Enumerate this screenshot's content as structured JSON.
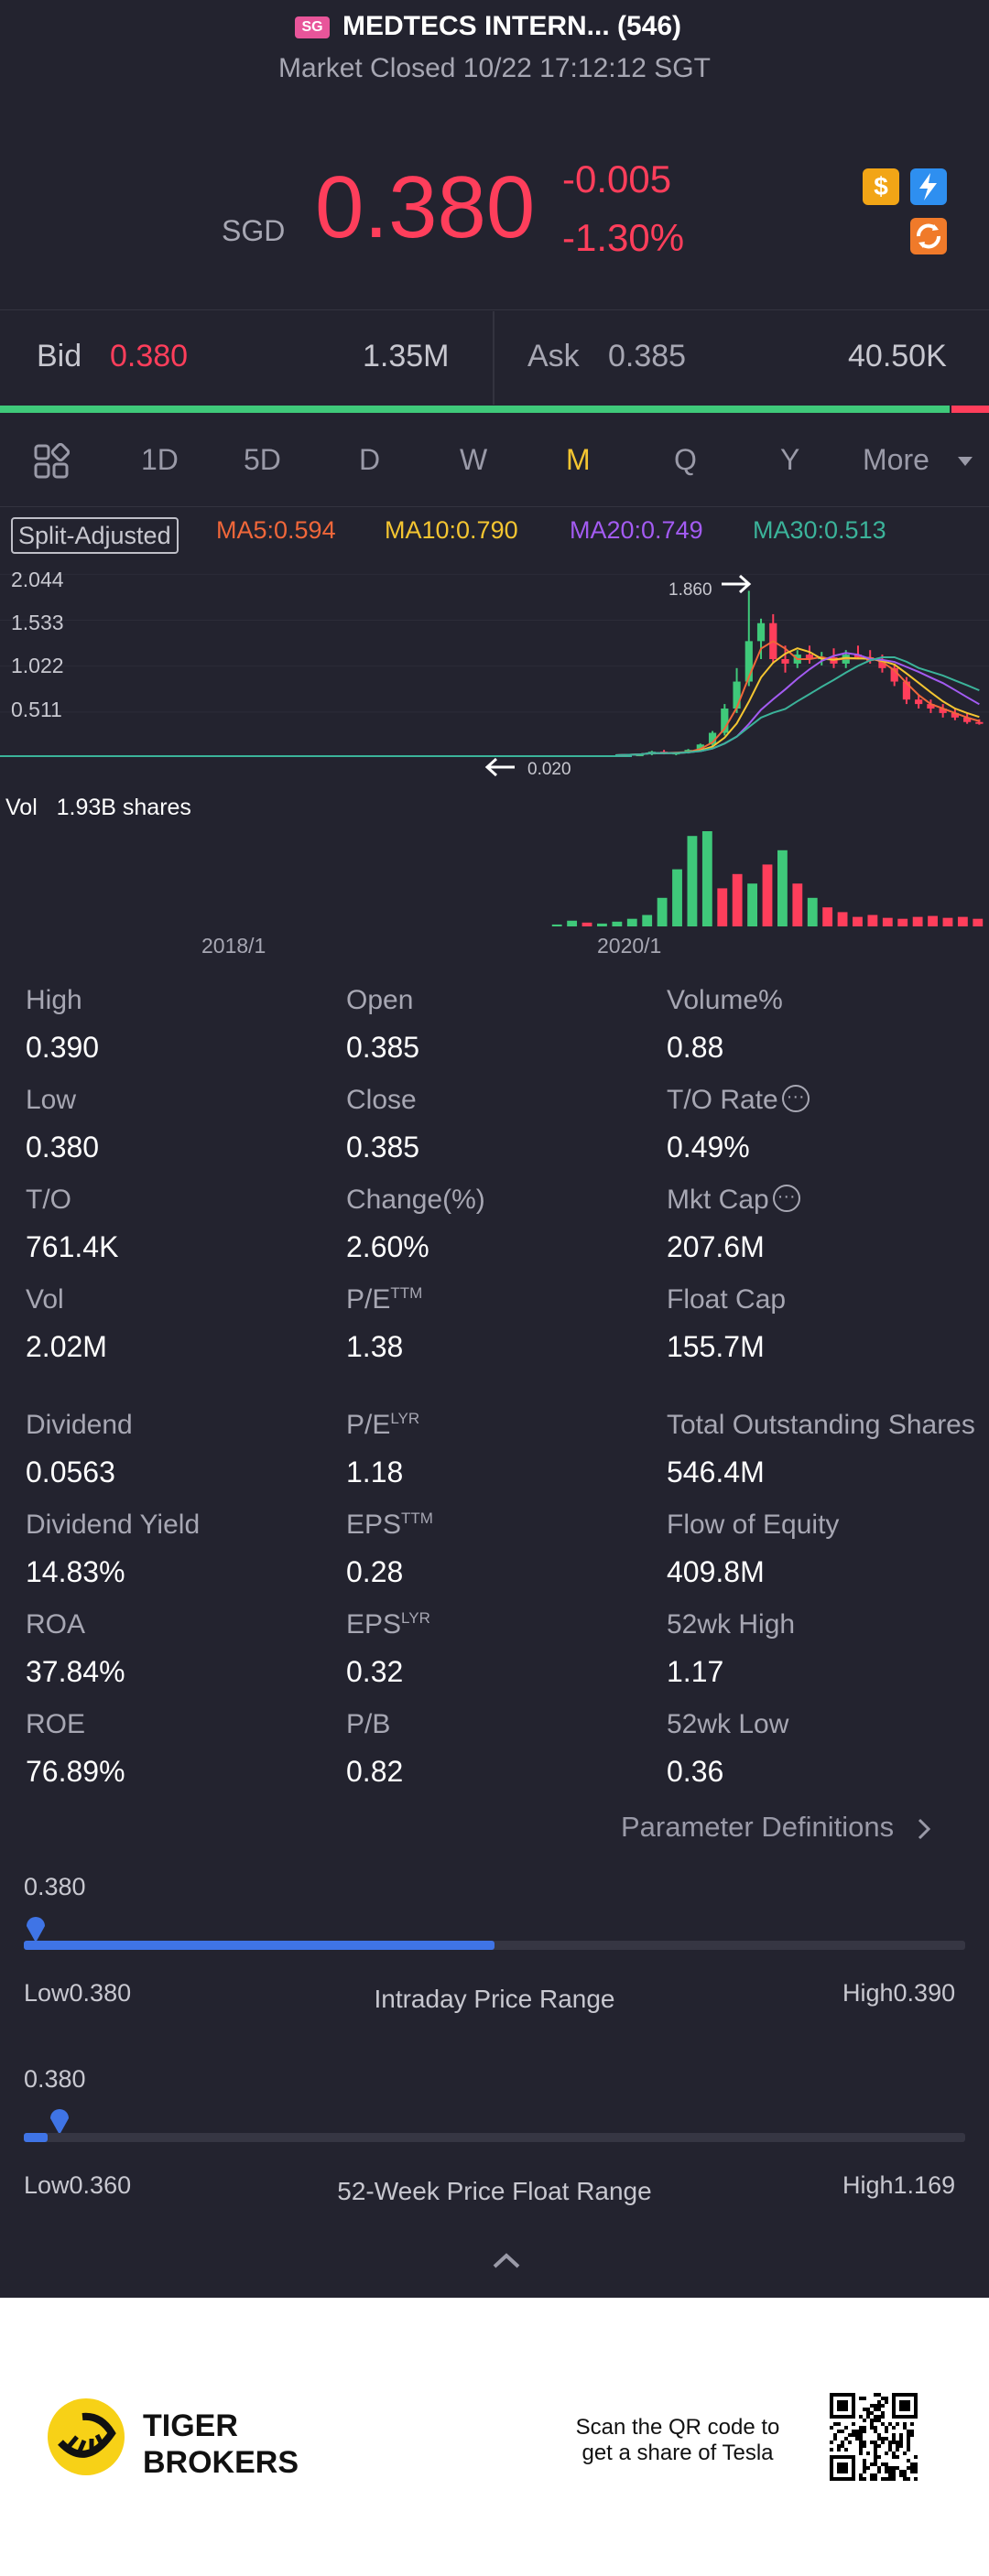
{
  "header": {
    "badge": "SG",
    "title": "MEDTECS INTERN... (546)",
    "status": "Market Closed 10/22 17:12:12 SGT"
  },
  "price": {
    "currency": "SGD",
    "last": "0.380",
    "change": "-0.005",
    "change_pct": "-1.30%",
    "icons": [
      "dollar-icon",
      "flash-icon",
      "sync-icon"
    ]
  },
  "quote": {
    "bid_label": "Bid",
    "bid_price": "0.380",
    "bid_size": "1.35M",
    "ask_label": "Ask",
    "ask_price": "0.385",
    "ask_size": "40.50K",
    "bid_share": 0.96
  },
  "tabs": {
    "items": [
      "1D",
      "5D",
      "D",
      "W",
      "M",
      "Q",
      "Y",
      "More"
    ],
    "active": "M"
  },
  "chart": {
    "split_label": "Split-Adjusted",
    "ma": [
      {
        "label": "MA5:0.594",
        "color": "#f0673a"
      },
      {
        "label": "MA10:0.790",
        "color": "#f4c531"
      },
      {
        "label": "MA20:0.749",
        "color": "#a35bf2"
      },
      {
        "label": "MA30:0.513",
        "color": "#3bb39a"
      }
    ],
    "y_ticks": [
      "2.044",
      "1.533",
      "1.022",
      "0.511"
    ],
    "high_marker": "1.860",
    "low_marker": "0.020",
    "volume_label": "Vol",
    "volume_value": "1.93B shares",
    "x_ticks": [
      "2018/1",
      "2020/1"
    ]
  },
  "chart_data": {
    "type": "candlestick",
    "period": "M",
    "y_ticks": [
      2.044,
      1.533,
      1.022,
      0.511
    ],
    "ylim": [
      0,
      2.2
    ],
    "high_marker": 1.86,
    "low_marker": 0.02,
    "x_ticks": [
      "2018/1",
      "2020/1"
    ],
    "colors": {
      "up": "#3fc97a",
      "down": "#ff3e5b"
    },
    "candles": [
      {
        "o": 0.03,
        "h": 0.05,
        "l": 0.02,
        "c": 0.04
      },
      {
        "o": 0.04,
        "h": 0.08,
        "l": 0.03,
        "c": 0.07
      },
      {
        "o": 0.07,
        "h": 0.09,
        "l": 0.04,
        "c": 0.05
      },
      {
        "o": 0.05,
        "h": 0.06,
        "l": 0.03,
        "c": 0.06
      },
      {
        "o": 0.06,
        "h": 0.1,
        "l": 0.05,
        "c": 0.09
      },
      {
        "o": 0.09,
        "h": 0.16,
        "l": 0.08,
        "c": 0.15
      },
      {
        "o": 0.15,
        "h": 0.3,
        "l": 0.13,
        "c": 0.28
      },
      {
        "o": 0.28,
        "h": 0.6,
        "l": 0.25,
        "c": 0.55
      },
      {
        "o": 0.55,
        "h": 1.0,
        "l": 0.5,
        "c": 0.85
      },
      {
        "o": 0.85,
        "h": 1.86,
        "l": 0.8,
        "c": 1.3
      },
      {
        "o": 1.3,
        "h": 1.55,
        "l": 1.1,
        "c": 1.5
      },
      {
        "o": 1.5,
        "h": 1.6,
        "l": 1.05,
        "c": 1.1
      },
      {
        "o": 1.1,
        "h": 1.25,
        "l": 0.95,
        "c": 1.05
      },
      {
        "o": 1.05,
        "h": 1.2,
        "l": 1.0,
        "c": 1.15
      },
      {
        "o": 1.15,
        "h": 1.25,
        "l": 1.05,
        "c": 1.1
      },
      {
        "o": 1.1,
        "h": 1.18,
        "l": 1.03,
        "c": 1.12
      },
      {
        "o": 1.12,
        "h": 1.22,
        "l": 1.0,
        "c": 1.05
      },
      {
        "o": 1.05,
        "h": 1.2,
        "l": 1.0,
        "c": 1.15
      },
      {
        "o": 1.15,
        "h": 1.25,
        "l": 1.1,
        "c": 1.12
      },
      {
        "o": 1.12,
        "h": 1.2,
        "l": 1.05,
        "c": 1.08
      },
      {
        "o": 1.08,
        "h": 1.15,
        "l": 0.95,
        "c": 1.0
      },
      {
        "o": 1.0,
        "h": 1.05,
        "l": 0.8,
        "c": 0.85
      },
      {
        "o": 0.85,
        "h": 0.9,
        "l": 0.6,
        "c": 0.65
      },
      {
        "o": 0.65,
        "h": 0.7,
        "l": 0.55,
        "c": 0.6
      },
      {
        "o": 0.6,
        "h": 0.65,
        "l": 0.5,
        "c": 0.55
      },
      {
        "o": 0.55,
        "h": 0.6,
        "l": 0.45,
        "c": 0.5
      },
      {
        "o": 0.5,
        "h": 0.55,
        "l": 0.42,
        "c": 0.45
      },
      {
        "o": 0.45,
        "h": 0.5,
        "l": 0.38,
        "c": 0.4
      },
      {
        "o": 0.4,
        "h": 0.43,
        "l": 0.37,
        "c": 0.38
      }
    ],
    "volume": [
      2,
      6,
      4,
      3,
      5,
      8,
      12,
      30,
      60,
      95,
      100,
      40,
      55,
      45,
      65,
      80,
      45,
      30,
      20,
      15,
      10,
      12,
      9,
      8,
      10,
      11,
      9,
      10,
      8
    ]
  },
  "stats": [
    {
      "label": "High",
      "value": "0.390"
    },
    {
      "label": "Open",
      "value": "0.385"
    },
    {
      "label": "Volume%",
      "value": "0.88"
    },
    {
      "label": "Low",
      "value": "0.380"
    },
    {
      "label": "Close",
      "value": "0.385"
    },
    {
      "label": "T/O Rate",
      "value": "0.49%",
      "info": true
    },
    {
      "label": "T/O",
      "value": "761.4K"
    },
    {
      "label": "Change(%)",
      "value": "2.60%"
    },
    {
      "label": "Mkt Cap",
      "value": "207.6M",
      "info": true
    },
    {
      "label": "Vol",
      "value": "2.02M"
    },
    {
      "label": "P/E",
      "sup": "TTM",
      "value": "1.38"
    },
    {
      "label": "Float Cap",
      "value": "155.7M"
    },
    {
      "label": "Dividend",
      "value": "0.0563"
    },
    {
      "label": "P/E",
      "sup": "LYR",
      "value": "1.18"
    },
    {
      "label": "Total Outstanding Shares",
      "value": "546.4M"
    },
    {
      "label": "Dividend Yield",
      "value": "14.83%"
    },
    {
      "label": "EPS",
      "sup": "TTM",
      "value": "0.28"
    },
    {
      "label": "Flow of Equity",
      "value": "409.8M"
    },
    {
      "label": "ROA",
      "value": "37.84%"
    },
    {
      "label": "EPS",
      "sup": "LYR",
      "value": "0.32"
    },
    {
      "label": "52wk High",
      "value": "1.17"
    },
    {
      "label": "ROE",
      "value": "76.89%"
    },
    {
      "label": "P/B",
      "value": "0.82"
    },
    {
      "label": "52wk Low",
      "value": "0.36"
    }
  ],
  "parameter_definitions": "Parameter Definitions",
  "intraday_range": {
    "current": "0.380",
    "low_label": "Low",
    "low": "0.380",
    "high_label": "High",
    "high": "0.390",
    "title": "Intraday Price Range",
    "marker_fraction": 0.0,
    "fill_fraction": 0.5
  },
  "week52_range": {
    "current": "0.380",
    "low_label": "Low",
    "low": "0.360",
    "high_label": "High",
    "high": "1.169",
    "title": "52-Week Price Float Range",
    "marker_fraction": 0.025,
    "fill_fraction": 0.025
  },
  "footer": {
    "brand_line1": "TIGER",
    "brand_line2": "BROKERS",
    "scan_line1": "Scan the QR code to",
    "scan_line2": "get a share of Tesla"
  },
  "colors": {
    "background": "#23232f",
    "down": "#ff3e5b",
    "up": "#3fc97a",
    "accent": "#3f74e6",
    "active_tab": "#f4c531"
  }
}
